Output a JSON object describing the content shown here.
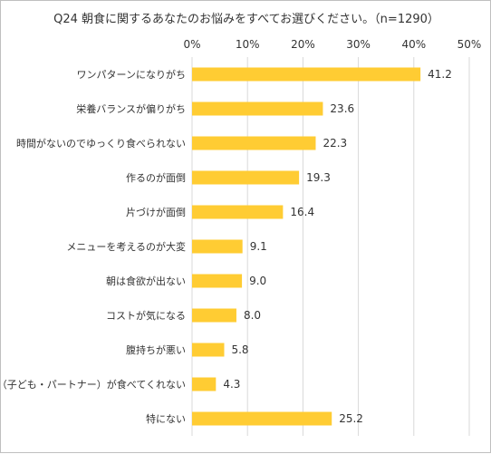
{
  "chart_data": {
    "type": "bar",
    "orientation": "horizontal",
    "title": "Q24 朝食に関するあなたのお悩みをすべてお選びください。（n=1290）",
    "categories": [
      "ワンパターンになりがち",
      "栄養バランスが偏りがち",
      "時間がないのでゆっくり食べられない",
      "作るのが面倒",
      "片づけが面倒",
      "メニューを考えるのが大変",
      "朝は食欲が出ない",
      "コストが気になる",
      "腹持ちが悪い",
      "家族（子ども・パートナー）が食べてくれない",
      "特にない"
    ],
    "values": [
      41.2,
      23.6,
      22.3,
      19.3,
      16.4,
      9.1,
      9.0,
      8.0,
      5.8,
      4.3,
      25.2
    ],
    "value_labels": [
      "41.2",
      "23.6",
      "22.3",
      "19.3",
      "16.4",
      "9.1",
      "9.0",
      "8.0",
      "5.8",
      "4.3",
      "25.2"
    ],
    "xlim": [
      0,
      50
    ],
    "x_ticks": [
      0,
      10,
      20,
      30,
      40,
      50
    ],
    "x_tick_labels": [
      "0%",
      "10%",
      "20%",
      "30%",
      "40%",
      "50%"
    ],
    "grid": true,
    "bar_color": "#FFCC33",
    "grid_color": "#d9d9d9"
  }
}
